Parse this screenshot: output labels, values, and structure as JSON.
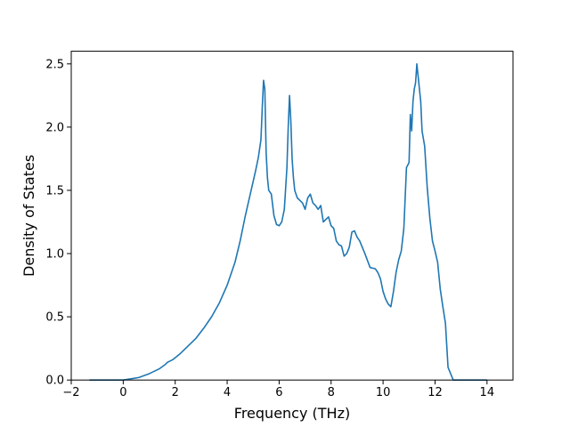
{
  "chart_data": {
    "type": "line",
    "title": "",
    "xlabel": "Frequency (THz)",
    "ylabel": "Density of States",
    "xlim": [
      -2.0,
      15.0
    ],
    "ylim": [
      0.0,
      2.6
    ],
    "xticks": [
      -2,
      0,
      2,
      4,
      6,
      8,
      10,
      12,
      14
    ],
    "xtick_labels": [
      "−2",
      "0",
      "2",
      "4",
      "6",
      "8",
      "10",
      "12",
      "14"
    ],
    "yticks": [
      0.0,
      0.5,
      1.0,
      1.5,
      2.0,
      2.5
    ],
    "ytick_labels": [
      "0.0",
      "0.5",
      "1.0",
      "1.5",
      "2.0",
      "2.5"
    ],
    "grid": false,
    "legend": "none",
    "series": [
      {
        "color": "#1f77b4",
        "x": [
          -1.3,
          -0.5,
          0.0,
          0.3,
          0.6,
          1.0,
          1.4,
          1.6,
          1.7,
          1.9,
          2.2,
          2.5,
          2.8,
          3.1,
          3.4,
          3.7,
          4.0,
          4.3,
          4.5,
          4.7,
          4.9,
          5.1,
          5.2,
          5.3,
          5.35,
          5.4,
          5.45,
          5.5,
          5.55,
          5.6,
          5.7,
          5.8,
          5.9,
          6.0,
          6.1,
          6.2,
          6.3,
          6.35,
          6.4,
          6.45,
          6.5,
          6.55,
          6.6,
          6.7,
          6.8,
          6.9,
          7.0,
          7.1,
          7.2,
          7.3,
          7.4,
          7.5,
          7.6,
          7.7,
          7.8,
          7.9,
          8.0,
          8.1,
          8.2,
          8.3,
          8.4,
          8.5,
          8.6,
          8.7,
          8.8,
          8.9,
          9.0,
          9.1,
          9.2,
          9.3,
          9.5,
          9.7,
          9.8,
          9.9,
          10.0,
          10.1,
          10.2,
          10.3,
          10.4,
          10.5,
          10.6,
          10.7,
          10.8,
          10.9,
          11.0,
          11.05,
          11.1,
          11.15,
          11.2,
          11.25,
          11.3,
          11.4,
          11.45,
          11.5,
          11.6,
          11.7,
          11.8,
          11.9,
          12.0,
          12.1,
          12.2,
          12.3,
          12.4,
          12.5,
          12.6,
          12.7,
          12.8,
          12.9,
          13.0,
          14.0
        ],
        "y": [
          0.0,
          0.0,
          0.0,
          0.01,
          0.02,
          0.05,
          0.09,
          0.12,
          0.14,
          0.16,
          0.21,
          0.27,
          0.33,
          0.41,
          0.5,
          0.61,
          0.75,
          0.93,
          1.1,
          1.3,
          1.48,
          1.66,
          1.76,
          1.9,
          2.15,
          2.37,
          2.3,
          1.8,
          1.6,
          1.5,
          1.47,
          1.3,
          1.23,
          1.22,
          1.25,
          1.35,
          1.68,
          2.0,
          2.25,
          2.05,
          1.75,
          1.6,
          1.5,
          1.44,
          1.42,
          1.4,
          1.35,
          1.44,
          1.47,
          1.4,
          1.38,
          1.35,
          1.38,
          1.25,
          1.27,
          1.29,
          1.22,
          1.2,
          1.1,
          1.07,
          1.06,
          0.98,
          1.0,
          1.05,
          1.17,
          1.18,
          1.13,
          1.1,
          1.05,
          1.0,
          0.89,
          0.88,
          0.85,
          0.8,
          0.7,
          0.64,
          0.6,
          0.58,
          0.7,
          0.85,
          0.95,
          1.02,
          1.2,
          1.68,
          1.72,
          2.1,
          1.97,
          2.2,
          2.3,
          2.35,
          2.5,
          2.3,
          2.2,
          1.97,
          1.85,
          1.52,
          1.28,
          1.1,
          1.02,
          0.93,
          0.72,
          0.58,
          0.45,
          0.1,
          0.05,
          0.0,
          0.0,
          0.0,
          0.0,
          0.0
        ]
      }
    ]
  }
}
